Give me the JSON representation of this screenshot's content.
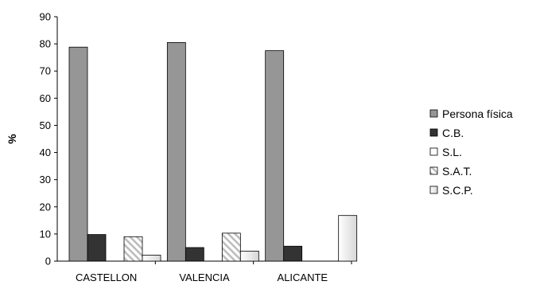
{
  "chart_data": {
    "type": "bar",
    "title": "",
    "xlabel": "",
    "ylabel": "%",
    "ylim": [
      0,
      90
    ],
    "yticks": [
      0,
      10,
      20,
      30,
      40,
      50,
      60,
      70,
      80,
      90
    ],
    "grid": false,
    "legend_position": "right",
    "categories": [
      "CASTELLON",
      "VALENCIA",
      "ALICANTE"
    ],
    "series": [
      {
        "name": "Persona física",
        "values": [
          78.8,
          80.5,
          77.5
        ],
        "color": "#969696",
        "pattern": "solid"
      },
      {
        "name": "C.B.",
        "values": [
          9.8,
          5.0,
          5.5
        ],
        "color": "#333333",
        "pattern": "solid"
      },
      {
        "name": "S.L.",
        "values": [
          0,
          0,
          0
        ],
        "color": "#ffffff",
        "pattern": "solid"
      },
      {
        "name": "S.A.T.",
        "values": [
          9.0,
          10.3,
          0
        ],
        "color": "#d9d9d9",
        "pattern": "diagonal-stripes"
      },
      {
        "name": "S.C.P.",
        "values": [
          2.2,
          3.7,
          16.8
        ],
        "color": "#f2f2f2",
        "pattern": "gradient"
      }
    ]
  }
}
